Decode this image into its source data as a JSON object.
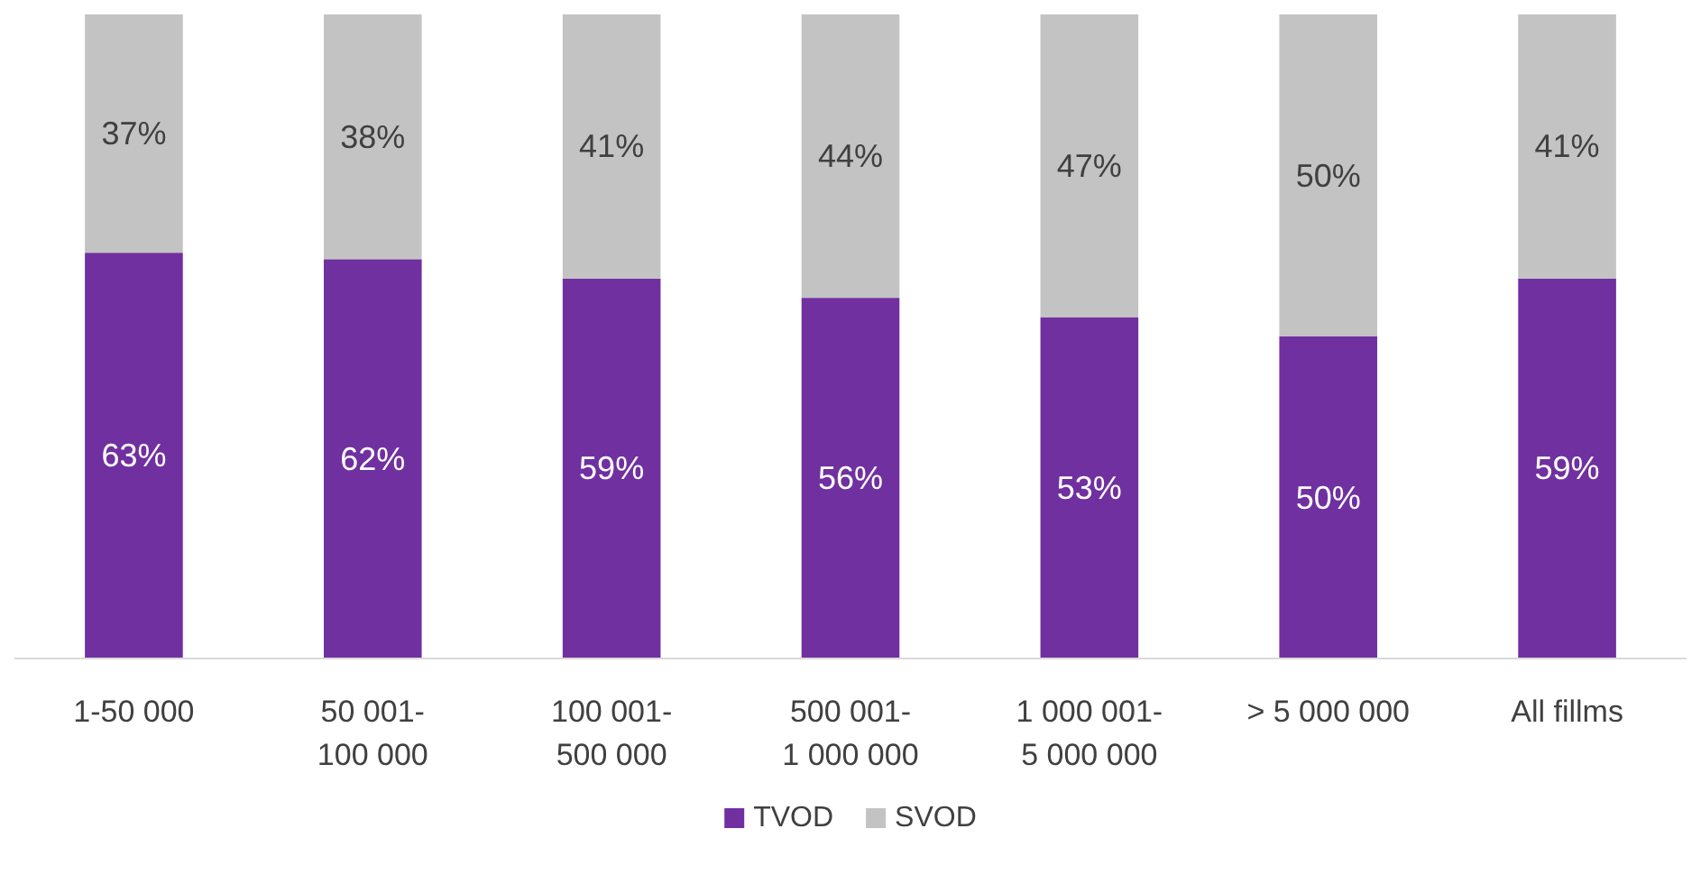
{
  "chart_data": {
    "type": "bar",
    "stacked": true,
    "categories": [
      "1-50 000",
      "50 001-100 000",
      "100 001-500 000",
      "500 001-1 000 000",
      "1 000 001-5 000 000",
      "> 5 000 000",
      "All fillms"
    ],
    "series": [
      {
        "name": "TVOD",
        "color": "#7030a0",
        "values": [
          63,
          62,
          59,
          56,
          53,
          50,
          59
        ],
        "value_labels": [
          "63%",
          "62%",
          "59%",
          "56%",
          "53%",
          "50%",
          "59%"
        ]
      },
      {
        "name": "SVOD",
        "color": "#c3c3c3",
        "values": [
          37,
          38,
          41,
          44,
          47,
          50,
          41
        ],
        "value_labels": [
          "37%",
          "38%",
          "41%",
          "44%",
          "47%",
          "50%",
          "41%"
        ]
      }
    ],
    "ylim": [
      0,
      100
    ],
    "tick_labels": "x",
    "legend": "bottom"
  }
}
